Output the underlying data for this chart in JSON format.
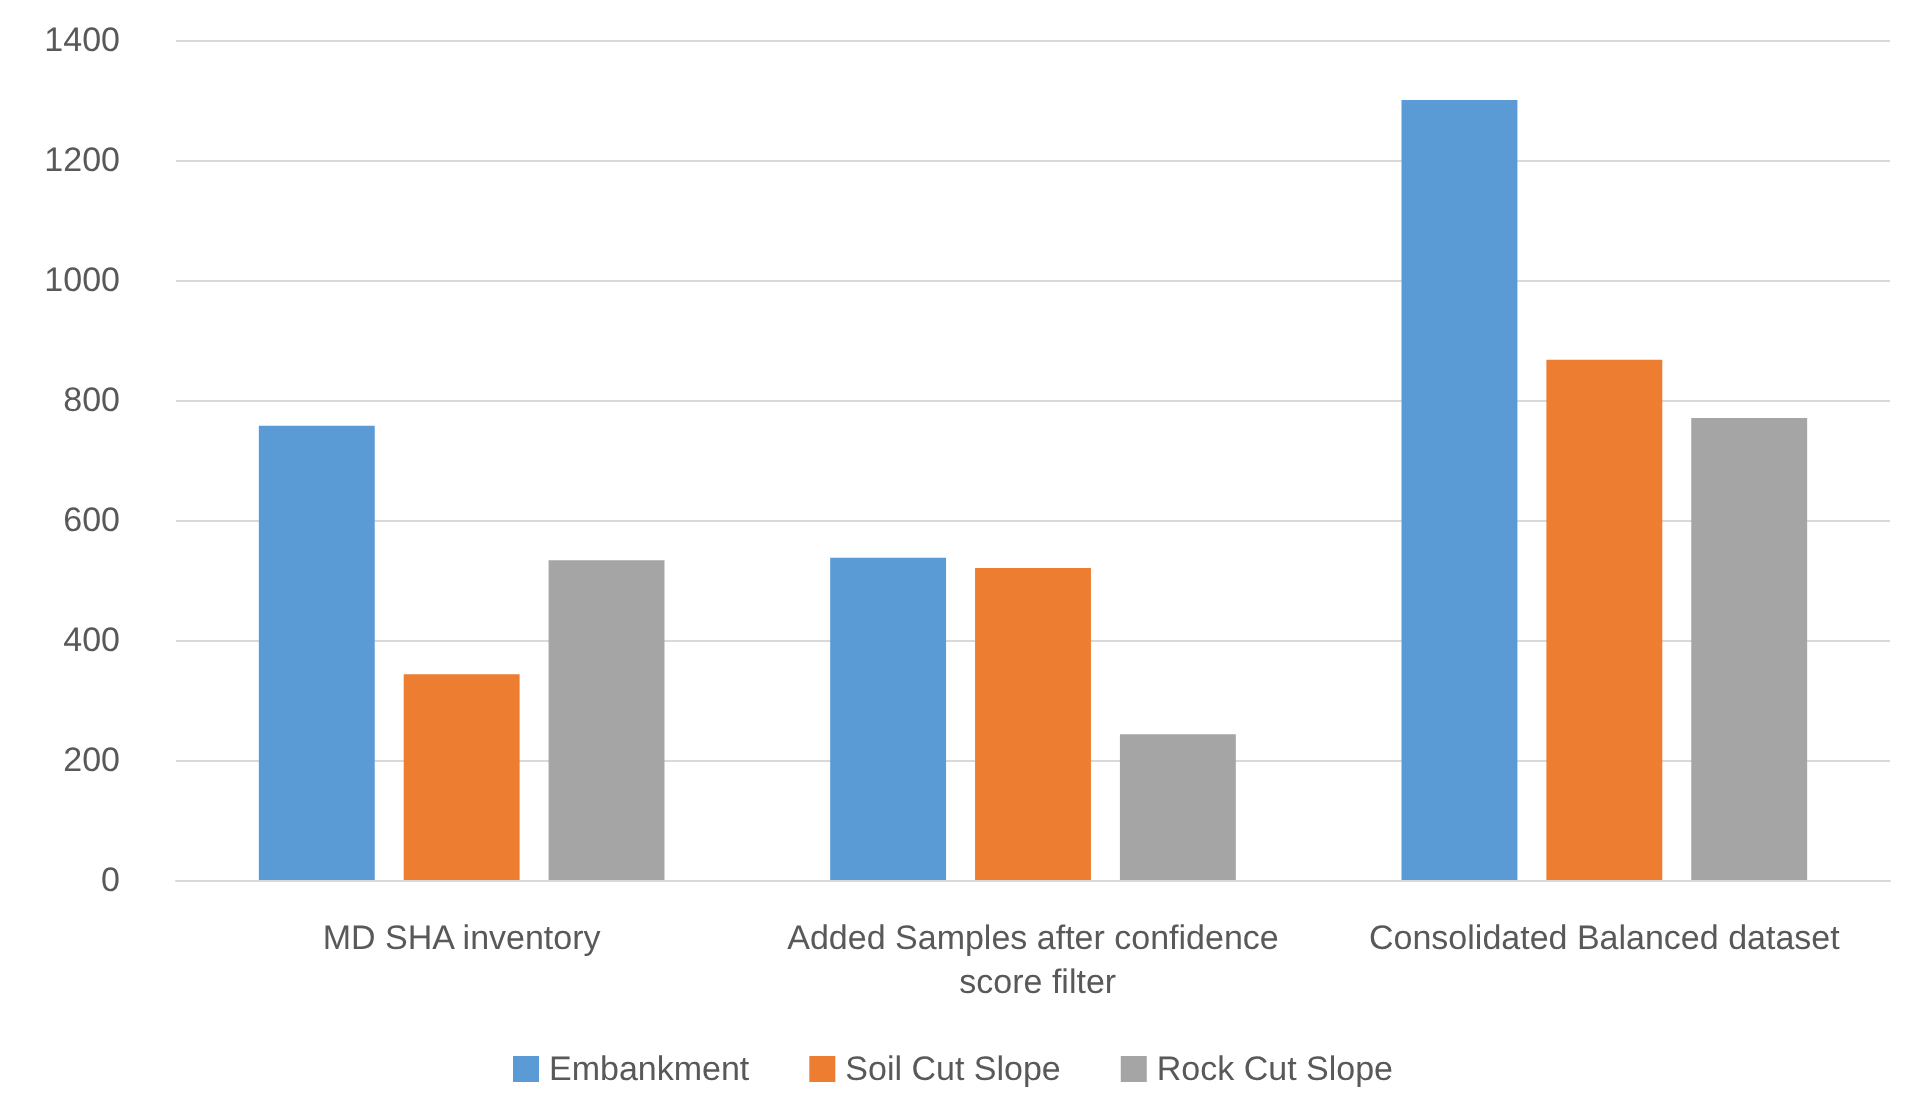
{
  "chart_data": {
    "type": "bar",
    "categories": [
      "MD SHA inventory",
      "Added Samples after confidence score filter",
      "Consolidated Balanced dataset"
    ],
    "series": [
      {
        "name": "Embankment",
        "color": "#5b9bd5",
        "values": [
          757,
          537,
          1300
        ]
      },
      {
        "name": "Soil Cut Slope",
        "color": "#ed7d31",
        "values": [
          343,
          520,
          867
        ]
      },
      {
        "name": "Rock Cut Slope",
        "color": "#a5a5a5",
        "values": [
          533,
          243,
          770
        ]
      }
    ],
    "ylim": [
      0,
      1400
    ],
    "yticks": [
      0,
      200,
      400,
      600,
      800,
      1000,
      1200,
      1400
    ],
    "grid": "y",
    "legend": "bottom"
  }
}
